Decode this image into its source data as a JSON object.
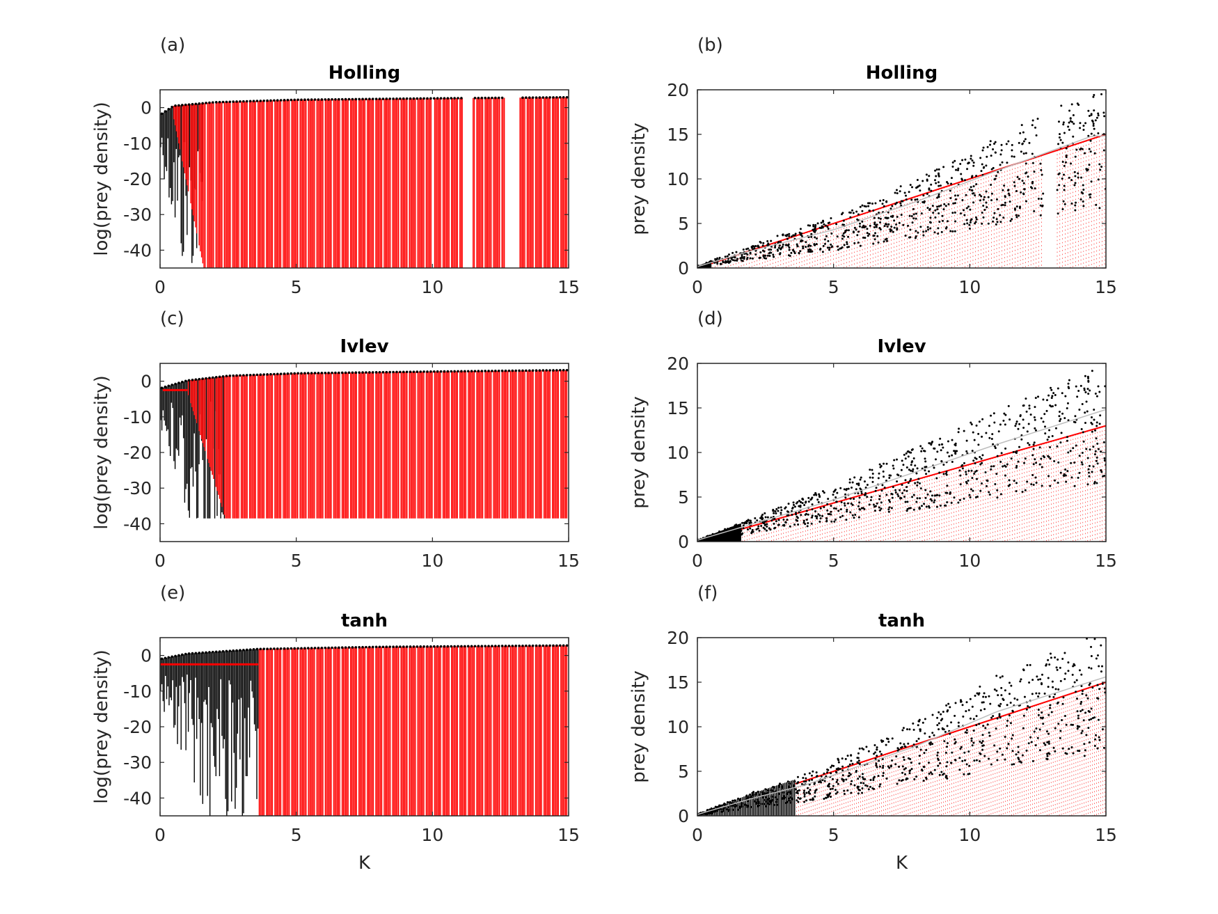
{
  "colors": {
    "red": "#ff0000",
    "black": "#000000",
    "mean_line": "#bdbdbd",
    "axis": "#262626"
  },
  "chart_data": [
    {
      "type": "scatter",
      "panel_label": "(a)",
      "title": "Holling",
      "xlabel": "",
      "ylabel": "log(prey density)",
      "xlim": [
        0,
        15
      ],
      "ylim": [
        -45,
        5
      ],
      "xticks": [
        0,
        5,
        10,
        15
      ],
      "xtick_labels": [
        "0",
        "5",
        "10",
        "15"
      ],
      "yticks": [
        -40,
        -30,
        -20,
        -10,
        0
      ],
      "ytick_labels": [
        "-40",
        "-30",
        "-20",
        "-10",
        "0"
      ],
      "style": "log",
      "red_start_k": 0.5,
      "red_floor_k": 1.6,
      "floor": -45,
      "upper_envelope": [
        [
          0,
          -2
        ],
        [
          0.5,
          0.5
        ],
        [
          2,
          1.5
        ],
        [
          5,
          2.2
        ],
        [
          10,
          2.6
        ],
        [
          15,
          2.9
        ]
      ],
      "fixed_level": null,
      "gaps": [
        [
          9.95,
          10.05
        ],
        [
          11.1,
          11.45
        ],
        [
          12.65,
          13.2
        ]
      ],
      "black_chaos_region": [
        0,
        1.6
      ]
    },
    {
      "type": "scatter",
      "panel_label": "(b)",
      "title": "Holling",
      "xlabel": "",
      "ylabel": "prey density",
      "xlim": [
        0,
        15
      ],
      "ylim": [
        0,
        20
      ],
      "xticks": [
        0,
        5,
        10,
        15
      ],
      "xtick_labels": [
        "0",
        "5",
        "10",
        "15"
      ],
      "yticks": [
        0,
        5,
        10,
        15,
        20
      ],
      "ytick_labels": [
        "0",
        "5",
        "10",
        "15",
        "20"
      ],
      "style": "linear",
      "red_start_k": 0.5,
      "red_slope": 1.0,
      "red_top_at_15": 15,
      "black_upper": [
        [
          0,
          0.2
        ],
        [
          2,
          2.5
        ],
        [
          5,
          5.5
        ],
        [
          8,
          9.5
        ],
        [
          11,
          14
        ],
        [
          14.5,
          19
        ]
      ],
      "gaps": [
        [
          12.7,
          13.2
        ]
      ]
    },
    {
      "type": "scatter",
      "panel_label": "(c)",
      "title": "Ivlev",
      "xlabel": "",
      "ylabel": "log(prey density)",
      "xlim": [
        0,
        15
      ],
      "ylim": [
        -45,
        5
      ],
      "xticks": [
        0,
        5,
        10,
        15
      ],
      "xtick_labels": [
        "0",
        "5",
        "10",
        "15"
      ],
      "yticks": [
        -40,
        -30,
        -20,
        -10,
        0
      ],
      "ytick_labels": [
        "-40",
        "-30",
        "-20",
        "-10",
        "0"
      ],
      "style": "log",
      "red_start_k": 1.0,
      "red_floor_k": 2.4,
      "floor": -38.5,
      "upper_envelope": [
        [
          0,
          -2
        ],
        [
          1,
          0.2
        ],
        [
          2.5,
          1.5
        ],
        [
          5,
          2.2
        ],
        [
          10,
          2.7
        ],
        [
          15,
          3.1
        ]
      ],
      "fixed_level": -2.5,
      "fixed_level_range": [
        0.1,
        1.0
      ],
      "gaps": [],
      "black_chaos_region": [
        0,
        2.4
      ]
    },
    {
      "type": "scatter",
      "panel_label": "(d)",
      "title": "Ivlev",
      "xlabel": "",
      "ylabel": "prey density",
      "xlim": [
        0,
        15
      ],
      "ylim": [
        0,
        20
      ],
      "xticks": [
        0,
        5,
        10,
        15
      ],
      "xtick_labels": [
        "0",
        "5",
        "10",
        "15"
      ],
      "yticks": [
        0,
        5,
        10,
        15,
        20
      ],
      "ytick_labels": [
        "0",
        "5",
        "10",
        "15",
        "20"
      ],
      "style": "linear",
      "red_start_k": 1.6,
      "red_slope": 0.99,
      "red_top_at_15": 13,
      "black_upper": [
        [
          0,
          0.2
        ],
        [
          2,
          2.5
        ],
        [
          5,
          6
        ],
        [
          8,
          10
        ],
        [
          11,
          14
        ],
        [
          15,
          19
        ]
      ],
      "gaps": []
    },
    {
      "type": "scatter",
      "panel_label": "(e)",
      "title": "tanh",
      "xlabel": "K",
      "ylabel": "log(prey density)",
      "xlim": [
        0,
        15
      ],
      "ylim": [
        -45,
        5
      ],
      "xticks": [
        0,
        5,
        10,
        15
      ],
      "xtick_labels": [
        "0",
        "5",
        "10",
        "15"
      ],
      "yticks": [
        -40,
        -30,
        -20,
        -10,
        0
      ],
      "ytick_labels": [
        "-40",
        "-30",
        "-20",
        "-10",
        "0"
      ],
      "style": "log",
      "red_start_k": 3.6,
      "red_floor_k": 3.6,
      "floor": -45,
      "upper_envelope": [
        [
          0,
          -1
        ],
        [
          1,
          0.5
        ],
        [
          3.6,
          1.8
        ],
        [
          8,
          2.4
        ],
        [
          15,
          2.8
        ]
      ],
      "fixed_level": -2.5,
      "fixed_level_range": [
        0,
        3.6
      ],
      "gaps": [],
      "black_chaos_region": [
        0,
        3.6
      ]
    },
    {
      "type": "scatter",
      "panel_label": "(f)",
      "title": "tanh",
      "xlabel": "K",
      "ylabel": "prey density",
      "xlim": [
        0,
        15
      ],
      "ylim": [
        0,
        20
      ],
      "xticks": [
        0,
        5,
        10,
        15
      ],
      "xtick_labels": [
        "0",
        "5",
        "10",
        "15"
      ],
      "yticks": [
        0,
        5,
        10,
        15,
        20
      ],
      "ytick_labels": [
        "0",
        "5",
        "10",
        "15",
        "20"
      ],
      "style": "linear",
      "red_start_k": 3.6,
      "red_slope": 1.0,
      "red_top_at_15": 15,
      "black_upper": [
        [
          0,
          0.2
        ],
        [
          2,
          2.5
        ],
        [
          4,
          4.5
        ],
        [
          8,
          10
        ],
        [
          11,
          15
        ],
        [
          15,
          20
        ]
      ],
      "gaps": []
    }
  ]
}
